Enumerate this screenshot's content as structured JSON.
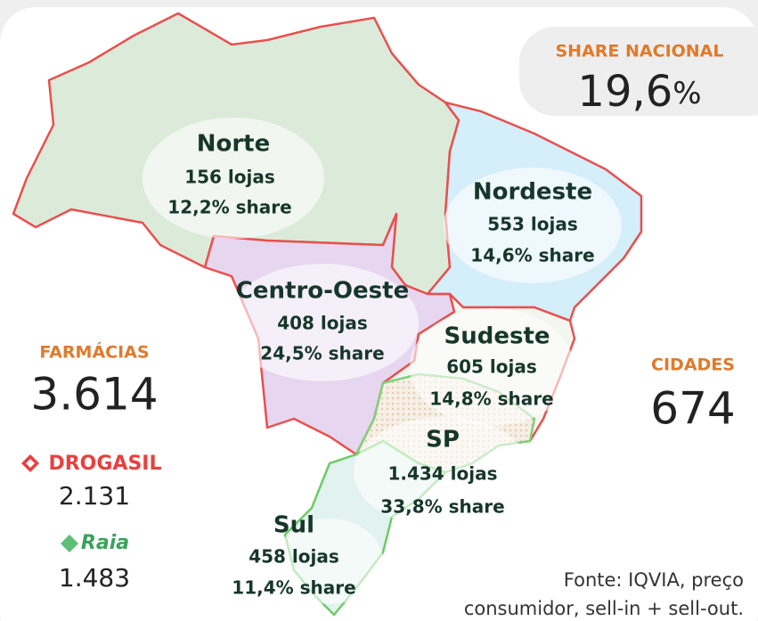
{
  "national_share": {
    "label": "SHARE NACIONAL",
    "value": "19,6",
    "unit": "%"
  },
  "regions": [
    {
      "name": "Norte",
      "stores": "156 lojas",
      "share": "12,2% share"
    },
    {
      "name": "Nordeste",
      "stores": "553 lojas",
      "share": "14,6% share"
    },
    {
      "name": "Centro-Oeste",
      "stores": "408 lojas",
      "share": "24,5% share"
    },
    {
      "name": "Sudeste",
      "stores": "605 lojas",
      "share": "14,8% share"
    },
    {
      "name": "SP",
      "stores": "1.434 lojas",
      "share": "33,8% share"
    },
    {
      "name": "Sul",
      "stores": "458 lojas",
      "share": "11,4% share"
    }
  ],
  "pharmacies": {
    "label": "FARMÁCIAS",
    "value": "3.614"
  },
  "brands": [
    {
      "name": "DROGASIL",
      "value": "2.131"
    },
    {
      "name": "Raia",
      "value": "1.483"
    }
  ],
  "cities": {
    "label": "CIDADES",
    "value": "674"
  },
  "source": [
    "Fonte: IQVIA, preço",
    "consumidor, sell-in + sell-out."
  ]
}
